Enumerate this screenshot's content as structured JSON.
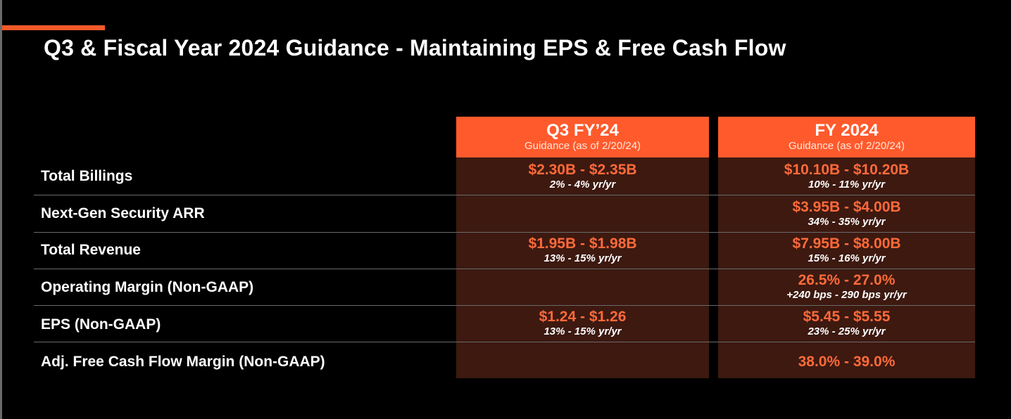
{
  "slide": {
    "title": "Q3 & Fiscal Year 2024 Guidance - Maintaining EPS & Free Cash Flow",
    "colors": {
      "accent": "#f05a28",
      "header_bg": "#ff5a2c",
      "body_bg": "#3d1910",
      "value_text": "#ff6a3a"
    }
  },
  "columns": [
    {
      "label": "Q3 FY’24",
      "sublabel": "Guidance (as of 2/20/24)"
    },
    {
      "label": "FY 2024",
      "sublabel": "Guidance (as of 2/20/24)"
    }
  ],
  "rows": [
    {
      "label": "Total Billings",
      "q3": {
        "value": "$2.30B - $2.35B",
        "growth": "2% - 4% yr/yr"
      },
      "fy": {
        "value": "$10.10B - $10.20B",
        "growth": "10% - 11% yr/yr"
      }
    },
    {
      "label": "Next-Gen Security ARR",
      "q3": {
        "value": "",
        "growth": ""
      },
      "fy": {
        "value": "$3.95B - $4.00B",
        "growth": "34% - 35% yr/yr"
      }
    },
    {
      "label": "Total Revenue",
      "q3": {
        "value": "$1.95B - $1.98B",
        "growth": "13% - 15% yr/yr"
      },
      "fy": {
        "value": "$7.95B - $8.00B",
        "growth": "15% - 16% yr/yr"
      }
    },
    {
      "label": "Operating Margin (Non-GAAP)",
      "q3": {
        "value": "",
        "growth": ""
      },
      "fy": {
        "value": "26.5% - 27.0%",
        "growth": "+240 bps - 290 bps yr/yr"
      }
    },
    {
      "label": "EPS (Non-GAAP)",
      "q3": {
        "value": "$1.24 - $1.26",
        "growth": "13% - 15% yr/yr"
      },
      "fy": {
        "value": "$5.45 - $5.55",
        "growth": "23% - 25% yr/yr"
      }
    },
    {
      "label": "Adj. Free Cash Flow Margin (Non-GAAP)",
      "q3": {
        "value": "",
        "growth": ""
      },
      "fy": {
        "value": "38.0% - 39.0%",
        "growth": ""
      }
    }
  ]
}
